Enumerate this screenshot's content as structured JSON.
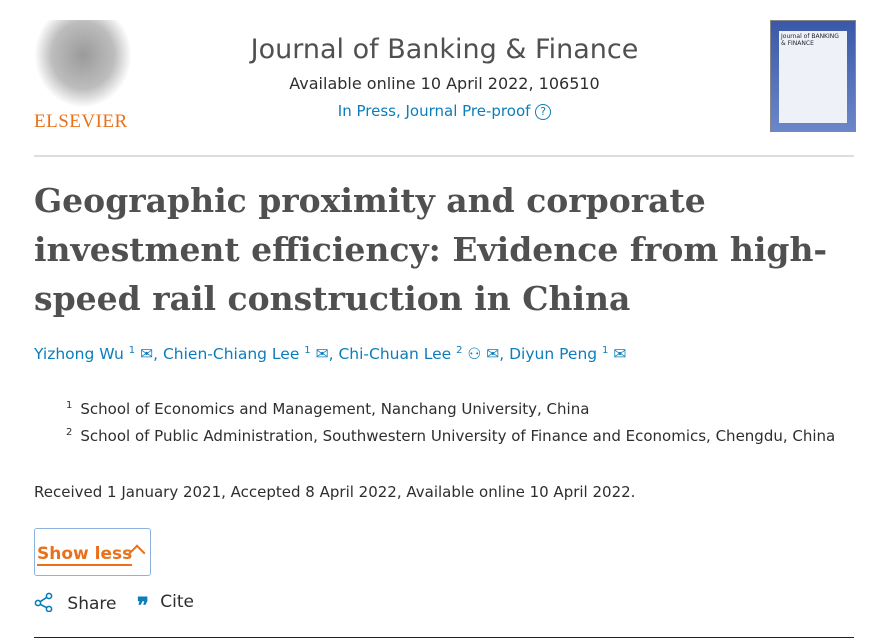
{
  "header": {
    "publisher": "ELSEVIER",
    "journal": "Journal of Banking & Finance",
    "availability": "Available online 10 April 2022, 106510",
    "status": "In Press, Journal Pre-proof",
    "help_icon": "question-circle-icon",
    "cover_text": "Journal of BANKING & FINANCE"
  },
  "article": {
    "title": "Geographic proximity and corporate investment efficiency: Evidence from high-speed rail construction in China",
    "authors": [
      {
        "name": "Yizhong Wu",
        "aff": "1"
      },
      {
        "name": "Chien-Chiang Lee",
        "aff": "1"
      },
      {
        "name": "Chi-Chuan Lee",
        "aff": "2"
      },
      {
        "name": "Diyun Peng",
        "aff": "1"
      }
    ],
    "affiliations": [
      {
        "num": "1",
        "text": "School of Economics and Management, Nanchang University, China"
      },
      {
        "num": "2",
        "text": "School of Public Administration, Southwestern University of Finance and Economics, Chengdu, China"
      }
    ],
    "history": "Received 1 January 2021, Accepted 8 April 2022, Available online 10 April 2022."
  },
  "actions": {
    "show_less": "Show less",
    "share": "Share",
    "cite": "Cite"
  },
  "colors": {
    "link": "#0c7dbb",
    "accent": "#e9711c"
  }
}
